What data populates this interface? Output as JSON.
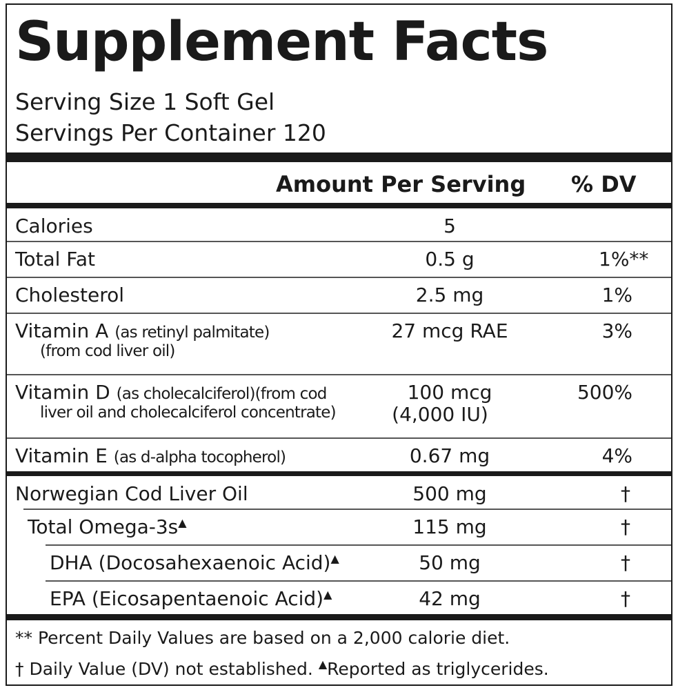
{
  "title": "Supplement Facts",
  "serving_size": "Serving Size 1 Soft Gel",
  "servings_per_container": "Servings Per Container 120",
  "header": {
    "amount": "Amount Per Serving",
    "dv": "% DV"
  },
  "rows": [
    {
      "name": "Calories",
      "amount": "5"
    },
    {
      "name": "Total Fat",
      "amount": "0.5 g",
      "dv": "1%**"
    },
    {
      "name": "Cholesterol",
      "amount": "2.5 mg",
      "dv": "1%"
    },
    {
      "name": "Vitamin A",
      "detail": "(as retinyl palmitate)",
      "detail_line2": "(from cod liver oil)",
      "amount": "27 mcg RAE",
      "dv": "3%"
    },
    {
      "name": "Vitamin D",
      "detail": "(as cholecalciferol)(from cod",
      "detail_line2": "liver oil and cholecalciferol concentrate)",
      "amount": "100 mcg",
      "amount_line2": "(4,000 IU)",
      "dv": "500%"
    },
    {
      "name": "Vitamin E",
      "detail": "(as d-alpha tocopherol)",
      "amount": "0.67 mg",
      "dv": "4%"
    }
  ],
  "oil_rows": [
    {
      "name": "Norwegian Cod Liver Oil",
      "amount": "500 mg",
      "dv": "†"
    },
    {
      "name": "Total Omega-3s",
      "marker": "▲",
      "amount": "115 mg",
      "dv": "†"
    },
    {
      "name": "DHA (Docosahexaenoic Acid)",
      "marker": "▲",
      "amount": "50 mg",
      "dv": "†"
    },
    {
      "name": "EPA (Eicosapentaenoic Acid)",
      "marker": "▲",
      "amount": "42 mg",
      "dv": "†"
    }
  ],
  "footnotes": {
    "line1": "** Percent Daily Values are based on a 2,000 calorie diet.",
    "line2": "† Daily Value (DV) not established.",
    "marker": "▲",
    "line2_note": "Reported as triglycerides."
  }
}
